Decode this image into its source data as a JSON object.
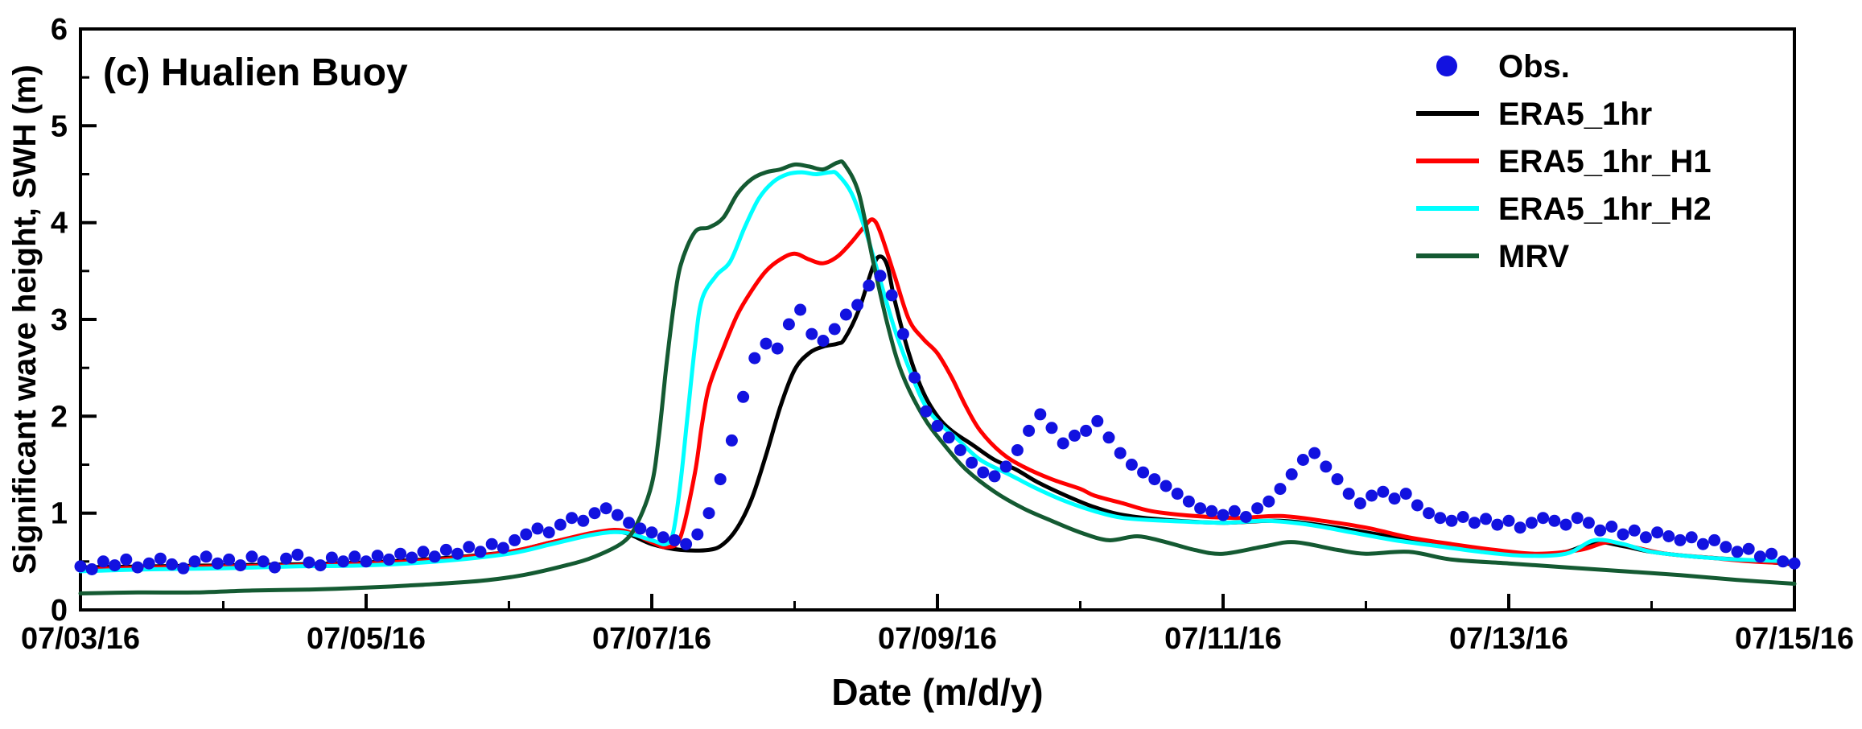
{
  "chart_data": {
    "type": "line+scatter",
    "title": "(c) Hualien Buoy",
    "xlabel": "Date (m/d/y)",
    "ylabel": "Significant wave height, SWH (m)",
    "x_unit": "days since 07/03/16 00:00",
    "xlim": [
      0,
      12
    ],
    "ylim": [
      0,
      6
    ],
    "grid": false,
    "legend_position": "top-right-inside",
    "frame_color": "#000000",
    "background": "#FFFFFF",
    "x_major_ticks": [
      {
        "x": 0,
        "label": "07/03/16"
      },
      {
        "x": 2,
        "label": "07/05/16"
      },
      {
        "x": 4,
        "label": "07/07/16"
      },
      {
        "x": 6,
        "label": "07/09/16"
      },
      {
        "x": 8,
        "label": "07/11/16"
      },
      {
        "x": 10,
        "label": "07/13/16"
      },
      {
        "x": 12,
        "label": "07/15/16"
      }
    ],
    "x_minor_ticks": [
      1,
      3,
      5,
      7,
      9,
      11
    ],
    "y_major_ticks": [
      0,
      1,
      2,
      3,
      4,
      5,
      6
    ],
    "y_minor_ticks": [
      0.5,
      1.5,
      2.5,
      3.5,
      4.5,
      5.5
    ],
    "series": [
      {
        "name": "Obs.",
        "type": "scatter",
        "marker": "circle",
        "color": "#1212E0",
        "x_start": 0,
        "x_step": 0.08,
        "values": [
          0.45,
          0.42,
          0.5,
          0.46,
          0.52,
          0.44,
          0.48,
          0.53,
          0.47,
          0.43,
          0.5,
          0.55,
          0.48,
          0.52,
          0.46,
          0.55,
          0.5,
          0.44,
          0.53,
          0.57,
          0.49,
          0.46,
          0.54,
          0.5,
          0.55,
          0.5,
          0.56,
          0.52,
          0.58,
          0.54,
          0.6,
          0.55,
          0.62,
          0.58,
          0.65,
          0.6,
          0.68,
          0.64,
          0.72,
          0.78,
          0.84,
          0.8,
          0.88,
          0.95,
          0.92,
          1.0,
          1.05,
          0.98,
          0.9,
          0.84,
          0.8,
          0.75,
          0.72,
          0.68,
          0.78,
          1.0,
          1.35,
          1.75,
          2.2,
          2.6,
          2.75,
          2.7,
          2.95,
          3.1,
          2.85,
          2.78,
          2.9,
          3.05,
          3.15,
          3.35,
          3.45,
          3.25,
          2.85,
          2.4,
          2.05,
          1.9,
          1.78,
          1.65,
          1.52,
          1.42,
          1.38,
          1.48,
          1.65,
          1.85,
          2.02,
          1.88,
          1.72,
          1.8,
          1.85,
          1.95,
          1.78,
          1.62,
          1.5,
          1.42,
          1.35,
          1.28,
          1.2,
          1.12,
          1.05,
          1.02,
          0.98,
          1.02,
          0.96,
          1.05,
          1.12,
          1.25,
          1.4,
          1.55,
          1.62,
          1.48,
          1.35,
          1.2,
          1.1,
          1.18,
          1.22,
          1.15,
          1.2,
          1.08,
          1.0,
          0.95,
          0.92,
          0.96,
          0.9,
          0.94,
          0.88,
          0.92,
          0.85,
          0.9,
          0.95,
          0.92,
          0.88,
          0.95,
          0.9,
          0.82,
          0.86,
          0.78,
          0.82,
          0.75,
          0.8,
          0.76,
          0.72,
          0.75,
          0.68,
          0.72,
          0.65,
          0.6,
          0.63,
          0.55,
          0.58,
          0.5,
          0.48
        ]
      },
      {
        "name": "ERA5_1hr",
        "type": "line",
        "color": "#000000",
        "points": [
          [
            0,
            0.44
          ],
          [
            0.5,
            0.45
          ],
          [
            1,
            0.46
          ],
          [
            1.5,
            0.47
          ],
          [
            2,
            0.49
          ],
          [
            2.5,
            0.53
          ],
          [
            3,
            0.6
          ],
          [
            3.3,
            0.7
          ],
          [
            3.6,
            0.79
          ],
          [
            3.8,
            0.8
          ],
          [
            4,
            0.68
          ],
          [
            4.2,
            0.62
          ],
          [
            4.4,
            0.62
          ],
          [
            4.5,
            0.68
          ],
          [
            4.6,
            0.85
          ],
          [
            4.7,
            1.15
          ],
          [
            4.8,
            1.6
          ],
          [
            4.9,
            2.1
          ],
          [
            5,
            2.48
          ],
          [
            5.1,
            2.65
          ],
          [
            5.2,
            2.72
          ],
          [
            5.3,
            2.75
          ],
          [
            5.35,
            2.8
          ],
          [
            5.45,
            3.1
          ],
          [
            5.55,
            3.55
          ],
          [
            5.6,
            3.65
          ],
          [
            5.65,
            3.55
          ],
          [
            5.7,
            3.2
          ],
          [
            5.8,
            2.65
          ],
          [
            5.9,
            2.25
          ],
          [
            6,
            2.0
          ],
          [
            6.1,
            1.85
          ],
          [
            6.25,
            1.7
          ],
          [
            6.4,
            1.55
          ],
          [
            6.55,
            1.45
          ],
          [
            6.7,
            1.32
          ],
          [
            6.9,
            1.18
          ],
          [
            7.1,
            1.06
          ],
          [
            7.3,
            0.98
          ],
          [
            7.6,
            0.93
          ],
          [
            8,
            0.9
          ],
          [
            8.4,
            0.92
          ],
          [
            8.8,
            0.85
          ],
          [
            9.2,
            0.75
          ],
          [
            9.5,
            0.68
          ],
          [
            9.8,
            0.62
          ],
          [
            10.1,
            0.57
          ],
          [
            10.4,
            0.6
          ],
          [
            10.6,
            0.7
          ],
          [
            10.8,
            0.66
          ],
          [
            11,
            0.6
          ],
          [
            11.3,
            0.55
          ],
          [
            11.6,
            0.52
          ],
          [
            12,
            0.47
          ]
        ]
      },
      {
        "name": "ERA5_1hr_H1",
        "type": "line",
        "color": "#FF0000",
        "points": [
          [
            0,
            0.42
          ],
          [
            0.5,
            0.44
          ],
          [
            1,
            0.45
          ],
          [
            1.5,
            0.46
          ],
          [
            2,
            0.48
          ],
          [
            2.5,
            0.52
          ],
          [
            3,
            0.6
          ],
          [
            3.3,
            0.7
          ],
          [
            3.6,
            0.8
          ],
          [
            3.8,
            0.82
          ],
          [
            4,
            0.7
          ],
          [
            4.1,
            0.65
          ],
          [
            4.2,
            0.75
          ],
          [
            4.3,
            1.4
          ],
          [
            4.35,
            1.9
          ],
          [
            4.4,
            2.3
          ],
          [
            4.5,
            2.7
          ],
          [
            4.6,
            3.05
          ],
          [
            4.7,
            3.3
          ],
          [
            4.8,
            3.5
          ],
          [
            4.9,
            3.62
          ],
          [
            5,
            3.68
          ],
          [
            5.1,
            3.62
          ],
          [
            5.2,
            3.58
          ],
          [
            5.3,
            3.65
          ],
          [
            5.4,
            3.8
          ],
          [
            5.5,
            3.98
          ],
          [
            5.55,
            4.03
          ],
          [
            5.6,
            3.9
          ],
          [
            5.7,
            3.45
          ],
          [
            5.8,
            3.0
          ],
          [
            5.9,
            2.8
          ],
          [
            6,
            2.65
          ],
          [
            6.1,
            2.4
          ],
          [
            6.2,
            2.1
          ],
          [
            6.3,
            1.85
          ],
          [
            6.45,
            1.62
          ],
          [
            6.6,
            1.48
          ],
          [
            6.8,
            1.35
          ],
          [
            7,
            1.25
          ],
          [
            7.1,
            1.18
          ],
          [
            7.3,
            1.1
          ],
          [
            7.5,
            1.02
          ],
          [
            7.8,
            0.97
          ],
          [
            8.1,
            0.95
          ],
          [
            8.4,
            0.97
          ],
          [
            8.7,
            0.92
          ],
          [
            9,
            0.85
          ],
          [
            9.3,
            0.75
          ],
          [
            9.6,
            0.68
          ],
          [
            9.9,
            0.62
          ],
          [
            10.2,
            0.58
          ],
          [
            10.5,
            0.62
          ],
          [
            10.7,
            0.7
          ],
          [
            10.9,
            0.64
          ],
          [
            11.1,
            0.58
          ],
          [
            11.4,
            0.54
          ],
          [
            11.7,
            0.5
          ],
          [
            12,
            0.48
          ]
        ]
      },
      {
        "name": "ERA5_1hr_H2",
        "type": "line",
        "color": "#00FFFF",
        "points": [
          [
            0,
            0.4
          ],
          [
            0.5,
            0.42
          ],
          [
            1,
            0.43
          ],
          [
            1.5,
            0.45
          ],
          [
            2,
            0.46
          ],
          [
            2.5,
            0.5
          ],
          [
            3,
            0.58
          ],
          [
            3.3,
            0.68
          ],
          [
            3.6,
            0.78
          ],
          [
            3.8,
            0.8
          ],
          [
            4,
            0.72
          ],
          [
            4.1,
            0.68
          ],
          [
            4.15,
            0.8
          ],
          [
            4.2,
            1.3
          ],
          [
            4.25,
            2.0
          ],
          [
            4.3,
            2.7
          ],
          [
            4.35,
            3.2
          ],
          [
            4.45,
            3.45
          ],
          [
            4.55,
            3.6
          ],
          [
            4.65,
            3.95
          ],
          [
            4.75,
            4.25
          ],
          [
            4.85,
            4.42
          ],
          [
            4.95,
            4.5
          ],
          [
            5.05,
            4.52
          ],
          [
            5.15,
            4.5
          ],
          [
            5.25,
            4.52
          ],
          [
            5.3,
            4.5
          ],
          [
            5.4,
            4.3
          ],
          [
            5.5,
            3.9
          ],
          [
            5.6,
            3.4
          ],
          [
            5.7,
            2.9
          ],
          [
            5.8,
            2.5
          ],
          [
            5.9,
            2.15
          ],
          [
            6,
            1.95
          ],
          [
            6.15,
            1.75
          ],
          [
            6.3,
            1.55
          ],
          [
            6.5,
            1.4
          ],
          [
            6.7,
            1.25
          ],
          [
            6.9,
            1.12
          ],
          [
            7.1,
            1.02
          ],
          [
            7.3,
            0.95
          ],
          [
            7.6,
            0.92
          ],
          [
            8,
            0.9
          ],
          [
            8.3,
            0.92
          ],
          [
            8.6,
            0.88
          ],
          [
            8.9,
            0.8
          ],
          [
            9.2,
            0.72
          ],
          [
            9.5,
            0.66
          ],
          [
            9.8,
            0.6
          ],
          [
            10.1,
            0.56
          ],
          [
            10.4,
            0.58
          ],
          [
            10.6,
            0.72
          ],
          [
            10.8,
            0.68
          ],
          [
            11,
            0.6
          ],
          [
            11.3,
            0.55
          ],
          [
            11.6,
            0.52
          ],
          [
            12,
            0.5
          ]
        ]
      },
      {
        "name": "MRV",
        "type": "line",
        "color": "#145A32",
        "points": [
          [
            0,
            0.17
          ],
          [
            0.4,
            0.18
          ],
          [
            0.8,
            0.18
          ],
          [
            1.2,
            0.2
          ],
          [
            1.6,
            0.21
          ],
          [
            2,
            0.23
          ],
          [
            2.4,
            0.26
          ],
          [
            2.8,
            0.3
          ],
          [
            3.1,
            0.36
          ],
          [
            3.4,
            0.46
          ],
          [
            3.6,
            0.55
          ],
          [
            3.8,
            0.7
          ],
          [
            3.9,
            0.9
          ],
          [
            4,
            1.3
          ],
          [
            4.05,
            1.8
          ],
          [
            4.1,
            2.5
          ],
          [
            4.15,
            3.1
          ],
          [
            4.2,
            3.55
          ],
          [
            4.3,
            3.9
          ],
          [
            4.4,
            3.95
          ],
          [
            4.5,
            4.05
          ],
          [
            4.6,
            4.3
          ],
          [
            4.7,
            4.45
          ],
          [
            4.8,
            4.52
          ],
          [
            4.9,
            4.55
          ],
          [
            5,
            4.6
          ],
          [
            5.1,
            4.58
          ],
          [
            5.2,
            4.55
          ],
          [
            5.3,
            4.62
          ],
          [
            5.35,
            4.6
          ],
          [
            5.45,
            4.3
          ],
          [
            5.55,
            3.6
          ],
          [
            5.65,
            2.95
          ],
          [
            5.75,
            2.45
          ],
          [
            5.9,
            2.0
          ],
          [
            6.05,
            1.7
          ],
          [
            6.2,
            1.45
          ],
          [
            6.4,
            1.22
          ],
          [
            6.6,
            1.05
          ],
          [
            6.8,
            0.92
          ],
          [
            7,
            0.8
          ],
          [
            7.2,
            0.72
          ],
          [
            7.4,
            0.76
          ],
          [
            7.6,
            0.7
          ],
          [
            7.8,
            0.62
          ],
          [
            8,
            0.58
          ],
          [
            8.3,
            0.66
          ],
          [
            8.5,
            0.7
          ],
          [
            8.8,
            0.62
          ],
          [
            9,
            0.58
          ],
          [
            9.3,
            0.6
          ],
          [
            9.6,
            0.52
          ],
          [
            10,
            0.48
          ],
          [
            10.4,
            0.44
          ],
          [
            10.8,
            0.4
          ],
          [
            11.2,
            0.36
          ],
          [
            11.6,
            0.31
          ],
          [
            12,
            0.27
          ]
        ]
      }
    ]
  }
}
